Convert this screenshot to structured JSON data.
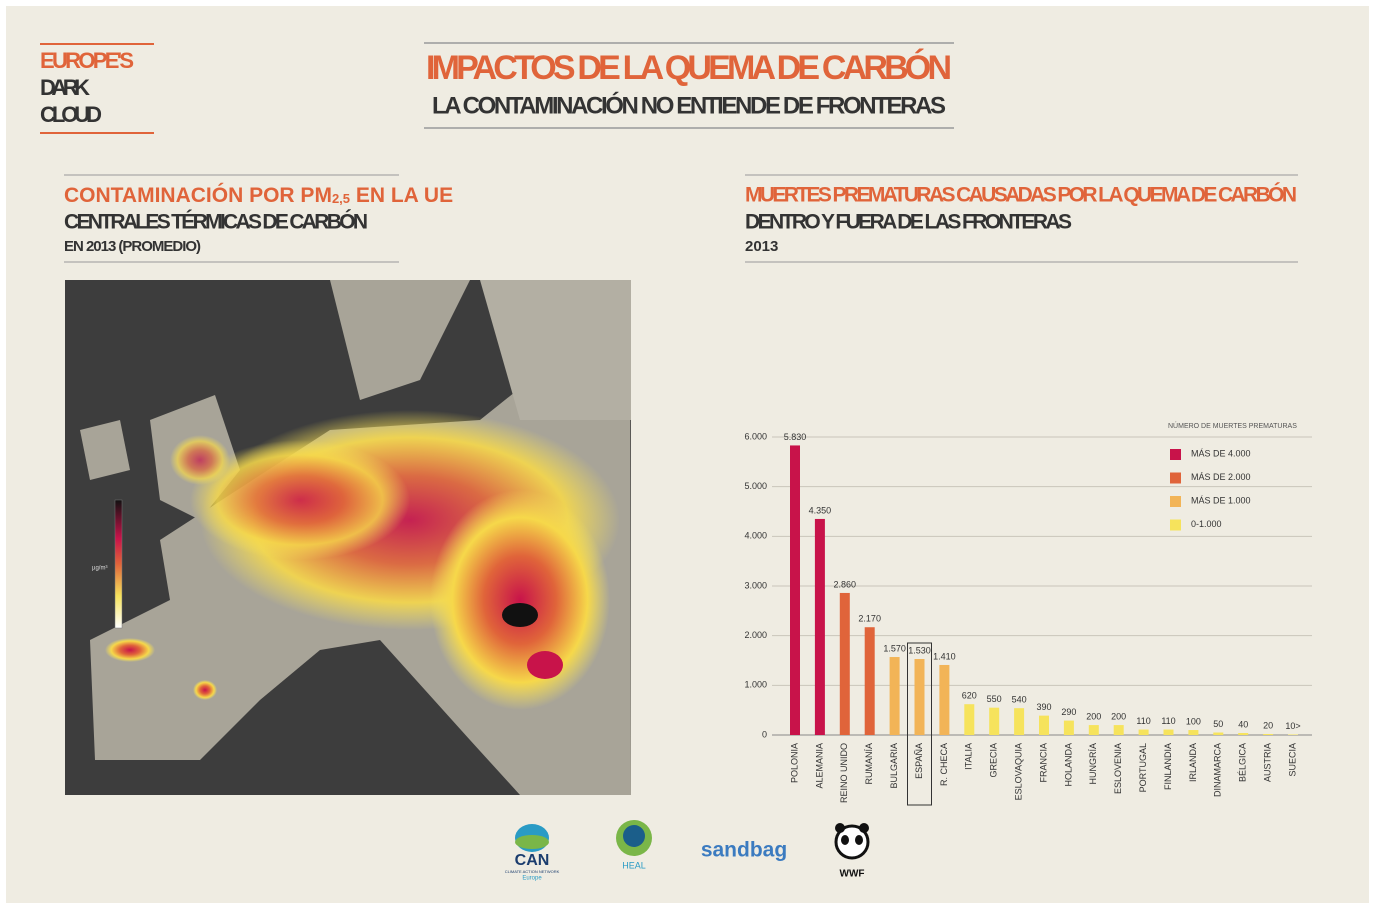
{
  "logo": {
    "lines": [
      "EUROPE'S",
      "DARK",
      "CLOUD"
    ]
  },
  "header": {
    "title": "IMPACTOS DE LA QUEMA DE CARBÓN",
    "subtitle": "LA CONTAMINACIÓN NO ENTIENDE DE FRONTERAS"
  },
  "map_panel": {
    "title_start": "CONTAMINACIÓN POR PM",
    "title_sub": "2,5",
    "title_end": " EN LA UE",
    "subtitle": "CENTRALES TÉRMICAS DE CARBÓN",
    "note": "EN 2013 (PROMEDIO)",
    "unit": "µg/m³"
  },
  "chart_data": {
    "type": "bar",
    "title": "MUERTES PREMATURAS CAUSADAS POR LA QUEMA DE CARBÓN",
    "subtitle": "DENTRO Y FUERA DE LAS FRONTERAS",
    "note": "2013",
    "legend_title": "NÚMERO DE MUERTES PREMATURAS",
    "legend": [
      {
        "name": "MÁS DE 4.000",
        "color": "#c8134a"
      },
      {
        "name": "MÁS DE 2.000",
        "color": "#e0643a"
      },
      {
        "name": "MÁS DE 1.000",
        "color": "#f2b457"
      },
      {
        "name": "0-1.000",
        "color": "#f6e35c"
      }
    ],
    "categories": [
      "POLONIA",
      "ALEMANIA",
      "REINO UNIDO",
      "RUMANÍA",
      "BULGARIA",
      "ESPAÑA",
      "R. CHECA",
      "ITALIA",
      "GRECIA",
      "ESLOVAQUIA",
      "FRANCIA",
      "HOLANDA",
      "HUNGRÍA",
      "ESLOVENIA",
      "PORTUGAL",
      "FINLANDIA",
      "IRLANDA",
      "DINAMARCA",
      "BÉLGICA",
      "AUSTRIA",
      "SUECIA"
    ],
    "values": [
      5830,
      4350,
      2860,
      2170,
      1570,
      1530,
      1410,
      620,
      550,
      540,
      390,
      290,
      200,
      200,
      110,
      110,
      100,
      50,
      40,
      20,
      10
    ],
    "value_labels": [
      "5.830",
      "4.350",
      "2.860",
      "2.170",
      "1.570",
      "1.530",
      "1.410",
      "620",
      "550",
      "540",
      "390",
      "290",
      "200",
      "200",
      "110",
      "110",
      "100",
      "50",
      "40",
      "20",
      "10>"
    ],
    "colors": [
      "#c8134a",
      "#c8134a",
      "#e0643a",
      "#e0643a",
      "#f2b457",
      "#f2b457",
      "#f2b457",
      "#f6e35c",
      "#f6e35c",
      "#f6e35c",
      "#f6e35c",
      "#f6e35c",
      "#f6e35c",
      "#f6e35c",
      "#f6e35c",
      "#f6e35c",
      "#f6e35c",
      "#f6e35c",
      "#f6e35c",
      "#f6e35c",
      "#f6e35c"
    ],
    "highlight_index": 5,
    "ylim": [
      0,
      6000
    ],
    "yticks": [
      0,
      {
        "value": 1000,
        "label": "1.000"
      },
      {
        "value": 2000,
        "label": "2.000"
      },
      {
        "value": 3000,
        "label": "3.000"
      },
      {
        "value": 4000,
        "label": "4.000"
      },
      {
        "value": 5000,
        "label": "5.000"
      },
      {
        "value": 6000,
        "label": "6.000"
      }
    ],
    "grid": true
  },
  "sponsors": {
    "can": "CAN",
    "can_sub": "CLIMATE ACTION NETWORK",
    "can_region": "Europe",
    "heal": "HEAL",
    "sandbag": "sandbag",
    "wwf": "WWF"
  }
}
